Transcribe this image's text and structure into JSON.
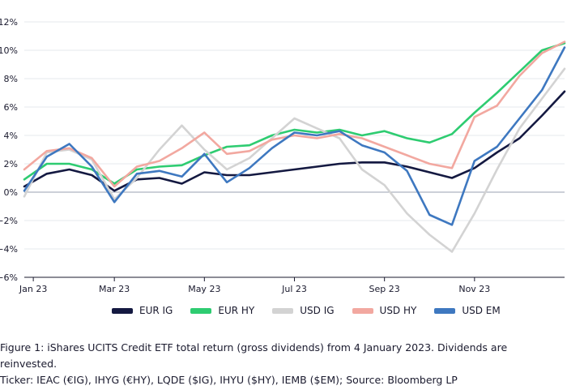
{
  "chart_data": {
    "type": "line",
    "ylim": [
      -6,
      12
    ],
    "yticks": [
      12,
      10,
      8,
      6,
      4,
      2,
      0,
      -2,
      -4,
      -6
    ],
    "ytick_labels": [
      "12%",
      "10%",
      "8%",
      "6%",
      "4%",
      "2%",
      "0%",
      "−2%",
      "−4%",
      "−6%"
    ],
    "xlim": [
      0,
      12
    ],
    "xticks": [
      0.2,
      2,
      4,
      6,
      8,
      10
    ],
    "xtick_labels": [
      "Jan 23",
      "Mar 23",
      "May 23",
      "Jul 23",
      "Sep 23",
      "Nov 23"
    ],
    "x": [
      0,
      0.5,
      1,
      1.5,
      2,
      2.5,
      3,
      3.5,
      4,
      4.5,
      5,
      5.5,
      6,
      6.5,
      7,
      7.5,
      8,
      8.5,
      9,
      9.5,
      10,
      10.5,
      11,
      11.5,
      12
    ],
    "series": [
      {
        "name": "EUR IG",
        "color": "#141941",
        "values": [
          0.4,
          1.3,
          1.6,
          1.2,
          0.1,
          0.9,
          1.0,
          0.6,
          1.4,
          1.2,
          1.2,
          1.4,
          1.6,
          1.8,
          2.0,
          2.1,
          2.1,
          1.8,
          1.4,
          1.0,
          1.7,
          2.8,
          3.8,
          5.4,
          7.1
        ]
      },
      {
        "name": "EUR HY",
        "color": "#2ecc71",
        "values": [
          0.9,
          2.0,
          2.0,
          1.6,
          0.6,
          1.6,
          1.8,
          1.9,
          2.6,
          3.2,
          3.3,
          4.0,
          4.4,
          4.2,
          4.4,
          4.0,
          4.3,
          3.8,
          3.5,
          4.1,
          5.6,
          7.0,
          8.5,
          10.0,
          10.5
        ]
      },
      {
        "name": "USD IG",
        "color": "#d3d3d3",
        "values": [
          -0.3,
          2.8,
          3.0,
          2.3,
          -0.5,
          1.0,
          3.0,
          4.7,
          3.0,
          1.6,
          2.4,
          3.8,
          5.2,
          4.5,
          3.8,
          1.6,
          0.5,
          -1.5,
          -3.0,
          -4.2,
          -1.5,
          1.6,
          4.5,
          6.6,
          8.7
        ]
      },
      {
        "name": "USD HY",
        "color": "#f2a8a0",
        "values": [
          1.6,
          2.9,
          3.1,
          2.4,
          0.4,
          1.8,
          2.2,
          3.1,
          4.2,
          2.7,
          2.9,
          3.7,
          4.0,
          3.8,
          4.1,
          3.8,
          3.2,
          2.6,
          2.0,
          1.7,
          5.3,
          6.1,
          8.2,
          9.8,
          10.6
        ]
      },
      {
        "name": "USD EM",
        "color": "#3e78c0",
        "values": [
          0.1,
          2.5,
          3.4,
          1.8,
          -0.7,
          1.3,
          1.5,
          1.1,
          2.7,
          0.7,
          1.7,
          3.1,
          4.2,
          4.0,
          4.3,
          3.3,
          2.8,
          1.5,
          -1.6,
          -2.3,
          2.2,
          3.2,
          5.2,
          7.2,
          10.2
        ]
      }
    ]
  },
  "legend": [
    {
      "label": "EUR IG",
      "color": "#141941"
    },
    {
      "label": "EUR HY",
      "color": "#2ecc71"
    },
    {
      "label": "USD IG",
      "color": "#d3d3d3"
    },
    {
      "label": "USD HY",
      "color": "#f2a8a0"
    },
    {
      "label": "USD EM",
      "color": "#3e78c0"
    }
  ],
  "caption": {
    "line1": "Figure 1: iShares UCITS Credit ETF total return (gross dividends) from 4 January 2023. Dividends are reinvested.",
    "line2": "Ticker: IEAC (€IG), IHYG (€HY), LQDE ($IG), IHYU ($HY), IEMB ($EM); Source: Bloomberg LP"
  }
}
